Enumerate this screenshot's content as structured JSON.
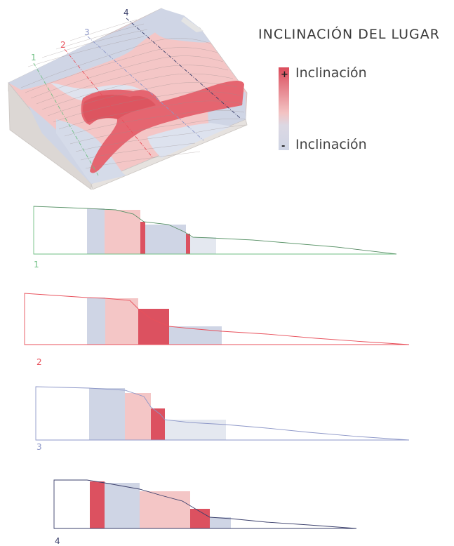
{
  "title": "INCLINACIÓN DEL LUGAR",
  "legend": {
    "high_sign": "+",
    "high_label": "Inclinación",
    "low_sign": "-",
    "low_label": "Inclinación",
    "color_high": "#db4c5c",
    "color_mid": "#f3c3c3",
    "color_low": "#cfd5e5"
  },
  "sections": [
    {
      "id": "1",
      "label": "1",
      "color": "#6fbf83"
    },
    {
      "id": "2",
      "label": "2",
      "color": "#e8505b"
    },
    {
      "id": "3",
      "label": "3",
      "color": "#8d97c8"
    },
    {
      "id": "4",
      "label": "4",
      "color": "#3a3f6b"
    }
  ],
  "slope_colors": {
    "low": "#cfd5e5",
    "mid": "#f4c6c6",
    "high": "#dc5160",
    "light": "#e4e8f0"
  }
}
